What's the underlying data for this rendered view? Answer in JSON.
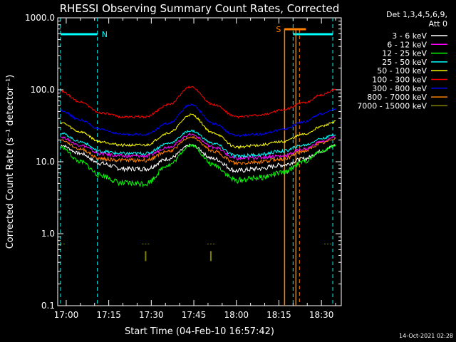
{
  "chart_data": {
    "type": "line",
    "title": "RHESSI Observing Summary Count Rates, Corrected",
    "xlabel": "Start Time (04-Feb-10 16:57:42)",
    "ylabel": "Corrected Count Rate (s⁻¹ detector⁻¹)",
    "yscale": "log",
    "ylim": [
      0.1,
      1000
    ],
    "xlim": [
      "16:57",
      "18:37"
    ],
    "x_ticks": [
      "17:00",
      "17:15",
      "17:30",
      "17:45",
      "18:00",
      "18:15",
      "18:30"
    ],
    "y_ticks": [
      "0.1",
      "1.0",
      "10.0",
      "100.0",
      "1000.0"
    ],
    "legend_header": [
      "Det 1,3,4,5,6,9,",
      "Att 0"
    ],
    "legend_position": "right",
    "grid": false,
    "series": [
      {
        "name": "3 - 6 keV",
        "color": "#ffffff",
        "x": [
          "16:58",
          "17:05",
          "17:12",
          "17:20",
          "17:28",
          "17:36",
          "17:44",
          "17:52",
          "18:00",
          "18:08",
          "18:16",
          "18:24",
          "18:30",
          "18:35"
        ],
        "values": [
          17,
          13,
          9.5,
          8,
          8,
          11,
          17,
          11,
          7.5,
          8,
          9,
          11,
          14,
          17
        ]
      },
      {
        "name": "6 - 12 keV",
        "color": "#ff00ff",
        "x": [
          "16:58",
          "17:05",
          "17:12",
          "17:20",
          "17:28",
          "17:36",
          "17:44",
          "17:52",
          "18:00",
          "18:08",
          "18:16",
          "18:24",
          "18:30",
          "18:35"
        ],
        "values": [
          22,
          17,
          13,
          12,
          12,
          16,
          24,
          16,
          11,
          11.5,
          12,
          15,
          19,
          22
        ]
      },
      {
        "name": "12 - 25 keV",
        "color": "#00ff00",
        "x": [
          "16:58",
          "17:05",
          "17:12",
          "17:20",
          "17:28",
          "17:36",
          "17:44",
          "17:52",
          "18:00",
          "18:08",
          "18:16",
          "18:24",
          "18:30",
          "18:35"
        ],
        "values": [
          16,
          10,
          6.5,
          5,
          5,
          9,
          17,
          9,
          5.5,
          6,
          7,
          10,
          14,
          17
        ]
      },
      {
        "name": "25 - 50 keV",
        "color": "#00ffff",
        "x": [
          "16:58",
          "17:05",
          "17:12",
          "17:20",
          "17:28",
          "17:36",
          "17:44",
          "17:52",
          "18:00",
          "18:08",
          "18:16",
          "18:24",
          "18:30",
          "18:35"
        ],
        "values": [
          25,
          19,
          14,
          13,
          13,
          18,
          27,
          18,
          12,
          12.5,
          14,
          17,
          21,
          24
        ]
      },
      {
        "name": "50 - 100 keV",
        "color": "#ffff00",
        "x": [
          "16:58",
          "17:05",
          "17:12",
          "17:20",
          "17:28",
          "17:36",
          "17:44",
          "17:52",
          "18:00",
          "18:08",
          "18:16",
          "18:24",
          "18:30",
          "18:35"
        ],
        "values": [
          35,
          26,
          19,
          17,
          17,
          25,
          45,
          25,
          16,
          17,
          19,
          24,
          31,
          36
        ]
      },
      {
        "name": "100 - 300 keV",
        "color": "#ff0000",
        "x": [
          "16:58",
          "17:05",
          "17:12",
          "17:20",
          "17:28",
          "17:36",
          "17:44",
          "17:52",
          "18:00",
          "18:08",
          "18:16",
          "18:24",
          "18:30",
          "18:35"
        ],
        "values": [
          95,
          68,
          48,
          42,
          42,
          62,
          110,
          62,
          42,
          44,
          52,
          66,
          85,
          100
        ]
      },
      {
        "name": "300 - 800 keV",
        "color": "#0000ff",
        "x": [
          "16:58",
          "17:05",
          "17:12",
          "17:20",
          "17:28",
          "17:36",
          "17:44",
          "17:52",
          "18:00",
          "18:08",
          "18:16",
          "18:24",
          "18:30",
          "18:35"
        ],
        "values": [
          52,
          38,
          28,
          24,
          24,
          34,
          62,
          34,
          23,
          24,
          28,
          36,
          46,
          54
        ]
      },
      {
        "name": "800 - 7000 keV",
        "color": "#ff8000",
        "x": [
          "16:58",
          "17:05",
          "17:12",
          "17:20",
          "17:28",
          "17:36",
          "17:44",
          "17:52",
          "18:00",
          "18:08",
          "18:16",
          "18:24",
          "18:30",
          "18:35"
        ],
        "values": [
          20,
          15,
          11,
          10.5,
          10.5,
          14,
          22,
          14,
          9.5,
          10,
          11,
          14,
          18,
          21
        ]
      },
      {
        "name": "7000 - 15000 keV",
        "color": "#808000",
        "x": [
          "17:28",
          "17:51"
        ],
        "values": [
          0.72,
          0.72
        ]
      }
    ],
    "annotations": {
      "night_markers": {
        "label": "N",
        "color": "#00ffff",
        "times": [
          "16:58",
          "17:11",
          "18:20",
          "18:34"
        ]
      },
      "saa_markers": {
        "label": "S",
        "color": "#ff8000",
        "times": [
          "18:17",
          "18:21"
        ]
      }
    }
  },
  "footer": {
    "date_stamp": "14-Oct-2021 02:28"
  }
}
